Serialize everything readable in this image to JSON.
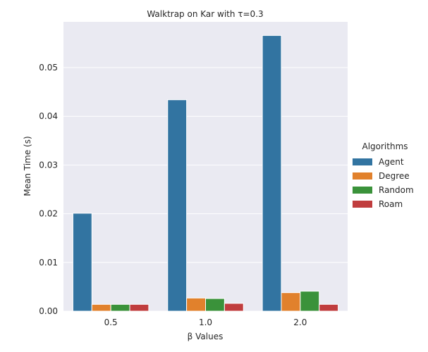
{
  "chart_data": {
    "type": "bar",
    "title": "Walktrap on Kar with τ=0.3",
    "xlabel": "β Values",
    "ylabel": "Mean Time (s)",
    "categories": [
      "0.5",
      "1.0",
      "2.0"
    ],
    "ylim": [
      0,
      0.0594
    ],
    "yticks": [
      "0.00",
      "0.01",
      "0.02",
      "0.03",
      "0.04",
      "0.05"
    ],
    "grid": true,
    "legend": {
      "title": "Algorithms",
      "placement": "right"
    },
    "series": [
      {
        "name": "Agent",
        "color": "#3274a1",
        "values": [
          0.0201,
          0.0434,
          0.0566
        ]
      },
      {
        "name": "Degree",
        "color": "#e1812c",
        "values": [
          0.0014,
          0.0027,
          0.0038
        ]
      },
      {
        "name": "Random",
        "color": "#3a923a",
        "values": [
          0.0014,
          0.0026,
          0.0041
        ]
      },
      {
        "name": "Roam",
        "color": "#c03d3e",
        "values": [
          0.0014,
          0.0016,
          0.0014
        ]
      }
    ]
  }
}
